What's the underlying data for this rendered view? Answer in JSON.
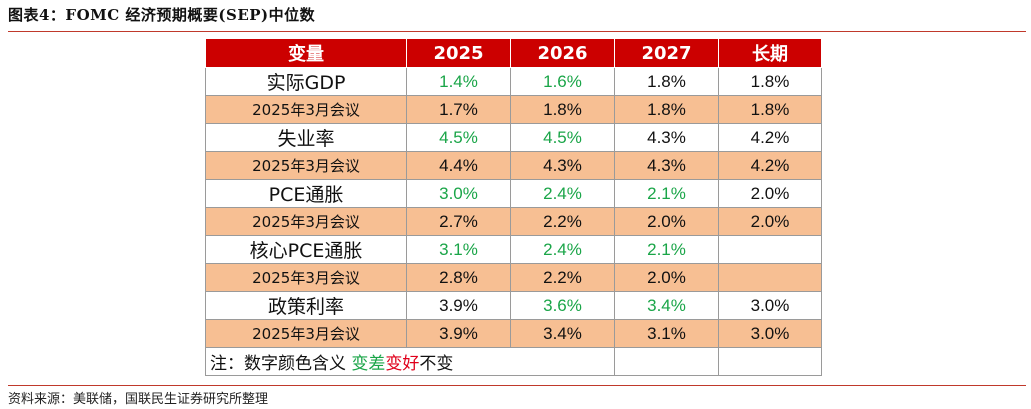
{
  "figure": {
    "title": "图表4：FOMC 经济预期概要(SEP)中位数",
    "source": "资料来源：美联储，国联民生证券研究所整理"
  },
  "table": {
    "headers": [
      "变量",
      "2025",
      "2026",
      "2027",
      "长期"
    ],
    "rows": [
      {
        "label": "实际GDP",
        "values": [
          "1.4%",
          "1.6%",
          "1.8%",
          "1.8%"
        ]
      },
      {
        "label": "2025年3月会议",
        "values": [
          "1.7%",
          "1.8%",
          "1.8%",
          "1.8%"
        ]
      },
      {
        "label": "失业率",
        "values": [
          "4.5%",
          "4.5%",
          "4.3%",
          "4.2%"
        ]
      },
      {
        "label": "2025年3月会议",
        "values": [
          "4.4%",
          "4.3%",
          "4.3%",
          "4.2%"
        ]
      },
      {
        "label": "PCE通胀",
        "values": [
          "3.0%",
          "2.4%",
          "2.1%",
          "2.0%"
        ]
      },
      {
        "label": "2025年3月会议",
        "values": [
          "2.7%",
          "2.2%",
          "2.0%",
          "2.0%"
        ]
      },
      {
        "label": "核心PCE通胀",
        "values": [
          "3.1%",
          "2.4%",
          "2.1%",
          ""
        ]
      },
      {
        "label": "2025年3月会议",
        "values": [
          "2.8%",
          "2.2%",
          "2.0%",
          ""
        ]
      },
      {
        "label": "政策利率",
        "values": [
          "3.9%",
          "3.6%",
          "3.4%",
          "3.0%"
        ]
      },
      {
        "label": "2025年3月会议",
        "values": [
          "3.9%",
          "3.4%",
          "3.1%",
          "3.0%"
        ]
      }
    ],
    "note": {
      "prefix": "注：数字颜色含义 ",
      "worse": "变差",
      "better": "变好",
      "unchanged": "不变"
    }
  },
  "colors": {
    "header_bg": "#cc0000",
    "previous_row_bg": "#f7bf93",
    "worse_text": "#1aa548",
    "better_text": "#e0001b",
    "rule": "#c0392b"
  }
}
